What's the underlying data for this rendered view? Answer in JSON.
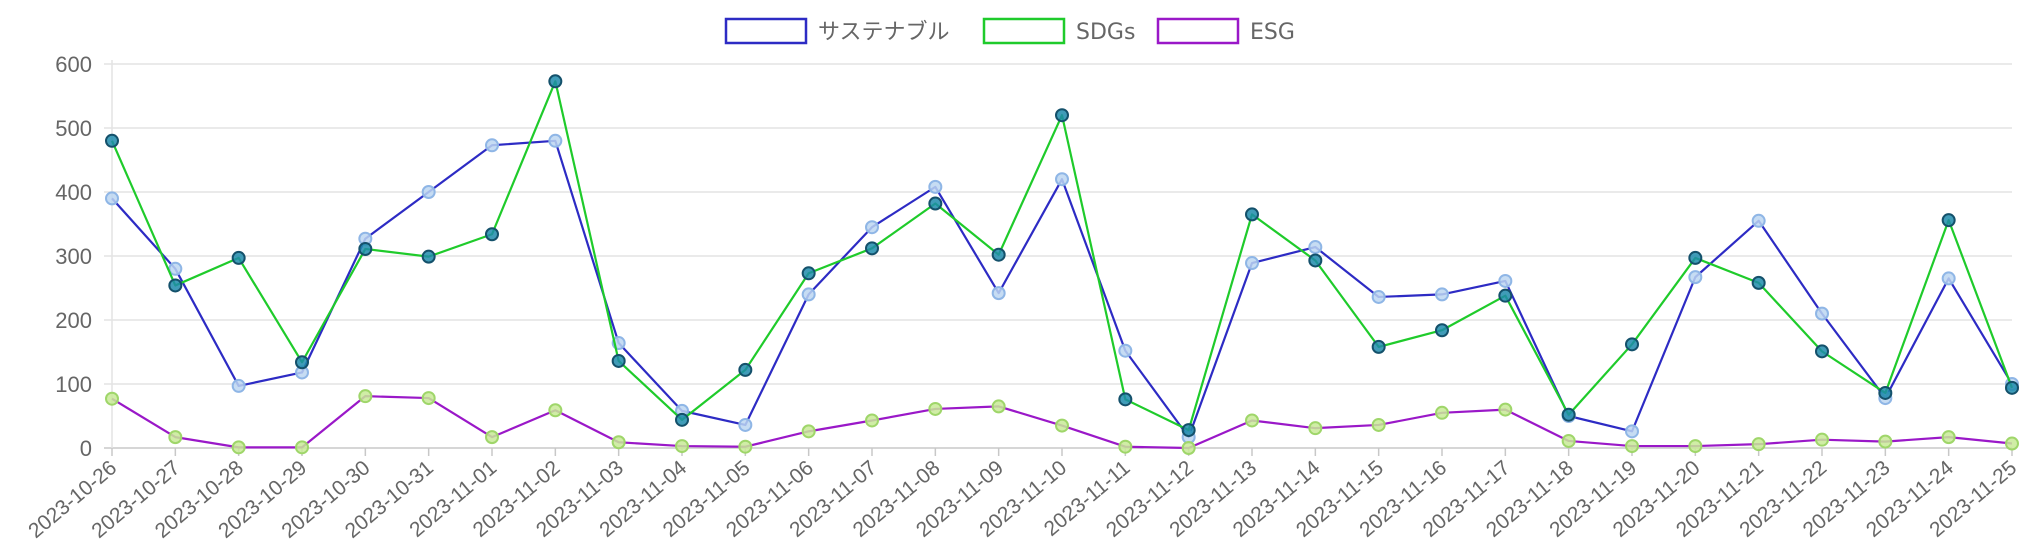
{
  "chart_data": {
    "type": "line",
    "xlabel": "",
    "ylabel": "",
    "ylim": [
      0,
      600
    ],
    "yticks": [
      0,
      100,
      200,
      300,
      400,
      500,
      600
    ],
    "grid": true,
    "legend_position": "top",
    "categories": [
      "2023-10-26",
      "2023-10-27",
      "2023-10-28",
      "2023-10-29",
      "2023-10-30",
      "2023-10-31",
      "2023-11-01",
      "2023-11-02",
      "2023-11-03",
      "2023-11-04",
      "2023-11-05",
      "2023-11-06",
      "2023-11-07",
      "2023-11-08",
      "2023-11-09",
      "2023-11-10",
      "2023-11-11",
      "2023-11-12",
      "2023-11-13",
      "2023-11-14",
      "2023-11-15",
      "2023-11-16",
      "2023-11-17",
      "2023-11-18",
      "2023-11-19",
      "2023-11-20",
      "2023-11-21",
      "2023-11-22",
      "2023-11-23",
      "2023-11-24",
      "2023-11-25"
    ],
    "series": [
      {
        "name": "サステナブル",
        "color": "#2d2bc4",
        "point_fill": "#bcd6f1",
        "values": [
          390,
          280,
          97,
          118,
          327,
          400,
          473,
          480,
          164,
          58,
          36,
          240,
          345,
          408,
          242,
          420,
          152,
          17,
          289,
          314,
          236,
          240,
          261,
          50,
          26,
          267,
          355,
          210,
          78,
          265,
          100
        ]
      },
      {
        "name": "SDGs",
        "color": "#1fcb2b",
        "point_fill": "#1f8bab",
        "values": [
          480,
          254,
          297,
          134,
          311,
          299,
          334,
          573,
          136,
          44,
          122,
          273,
          312,
          382,
          302,
          520,
          76,
          28,
          365,
          293,
          158,
          184,
          238,
          52,
          162,
          297,
          258,
          151,
          86,
          356,
          94
        ]
      },
      {
        "name": "ESG",
        "color": "#9a18c8",
        "point_fill": "#c8ea96",
        "values": [
          77,
          17,
          1,
          1,
          81,
          78,
          17,
          59,
          9,
          3,
          2,
          26,
          43,
          61,
          65,
          35,
          2,
          0,
          43,
          31,
          36,
          55,
          60,
          11,
          3,
          3,
          6,
          13,
          10,
          17,
          7
        ]
      }
    ]
  }
}
